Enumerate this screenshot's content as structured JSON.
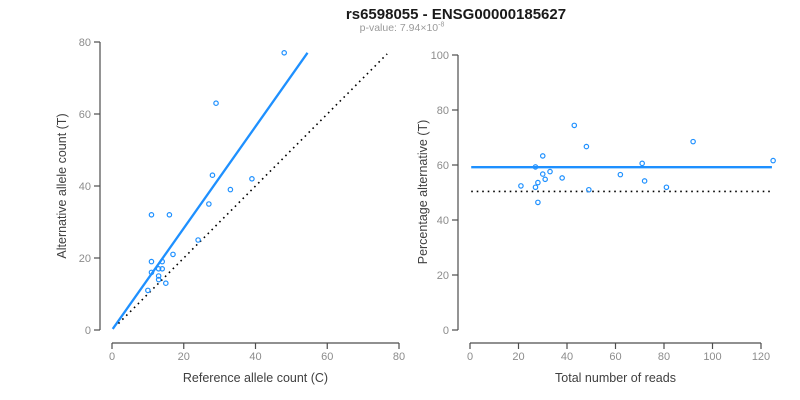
{
  "page": {
    "title": "rs6598055 - ENSG00000185627",
    "subtitle_prefix": "p-value: 7.94×10",
    "subtitle_exponent": "-8"
  },
  "colors": {
    "accent_blue": "#1E90FF",
    "dotted_black": "#000000",
    "axis": "#4d4d4d",
    "tick_label": "#8c8c8c",
    "axis_label": "#404040"
  },
  "chart_data": [
    {
      "id": "allele-count-scatter",
      "type": "scatter",
      "xlabel": "Reference allele count (C)",
      "ylabel": "Alternative allele count (T)",
      "xlim": [
        0,
        80
      ],
      "ylim": [
        0,
        80
      ],
      "xticks": [
        0,
        20,
        40,
        60,
        80
      ],
      "yticks": [
        0,
        20,
        40,
        60,
        80
      ],
      "grid": false,
      "points": [
        [
          10,
          11
        ],
        [
          13,
          14
        ],
        [
          15,
          13
        ],
        [
          13,
          15
        ],
        [
          11,
          16
        ],
        [
          13,
          17
        ],
        [
          14,
          17
        ],
        [
          14,
          19
        ],
        [
          11,
          19
        ],
        [
          17,
          21
        ],
        [
          24,
          25
        ],
        [
          11,
          32
        ],
        [
          16,
          32
        ],
        [
          27,
          35
        ],
        [
          33,
          39
        ],
        [
          39,
          42
        ],
        [
          28,
          43
        ],
        [
          29,
          63
        ],
        [
          48,
          77
        ]
      ],
      "lines": [
        {
          "name": "regression-line",
          "style": "solid",
          "color": "#1E90FF",
          "width": 2.3,
          "from": [
            0.2,
            0.3
          ],
          "to": [
            54.5,
            77
          ]
        },
        {
          "name": "identity-line",
          "style": "dotted",
          "color": "#000000",
          "width": 1.6,
          "from": [
            1.8,
            1.8
          ],
          "to": [
            76.7,
            76.7
          ]
        }
      ]
    },
    {
      "id": "percentage-vs-reads-scatter",
      "type": "scatter",
      "xlabel": "Total number of reads",
      "ylabel": "Percentage alternative (T)",
      "xlim": [
        0,
        120
      ],
      "ylim": [
        0,
        100
      ],
      "xticks": [
        0,
        20,
        40,
        60,
        80,
        100,
        120
      ],
      "yticks": [
        0,
        20,
        40,
        60,
        80,
        100
      ],
      "grid": false,
      "points": [
        [
          21,
          52.4
        ],
        [
          27,
          51.9
        ],
        [
          28,
          46.4
        ],
        [
          28,
          53.6
        ],
        [
          27,
          59.3
        ],
        [
          30,
          56.7
        ],
        [
          31,
          54.8
        ],
        [
          30,
          63.3
        ],
        [
          33,
          57.6
        ],
        [
          38,
          55.3
        ],
        [
          43,
          74.4
        ],
        [
          48,
          66.7
        ],
        [
          49,
          51.0
        ],
        [
          62,
          56.5
        ],
        [
          71,
          60.6
        ],
        [
          72,
          54.2
        ],
        [
          81,
          51.9
        ],
        [
          92,
          68.5
        ],
        [
          125,
          61.6
        ]
      ],
      "lines": [
        {
          "name": "mean-percentage-line",
          "style": "solid",
          "color": "#1E90FF",
          "width": 2.3,
          "from": [
            0.5,
            59.2
          ],
          "to": [
            124.5,
            59.2
          ]
        },
        {
          "name": "fifty-percent-line",
          "style": "dotted",
          "color": "#000000",
          "width": 1.6,
          "from": [
            0.5,
            50.4
          ],
          "to": [
            124.5,
            50.4
          ]
        }
      ]
    }
  ]
}
